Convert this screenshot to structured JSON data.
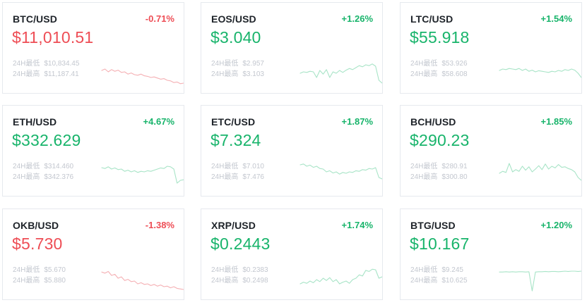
{
  "colors": {
    "up": "#18b46b",
    "down": "#ee4d55",
    "spark_up": "#a8e4c7",
    "spark_down": "#f5b0b4"
  },
  "labels": {
    "low": "24H最低",
    "high": "24H最高"
  },
  "tickers": [
    {
      "pair": "BTC/USD",
      "change": "-0.71%",
      "price": "$11,010.51",
      "low": "$10,834.45",
      "high": "$11,187.41",
      "trend": "down",
      "spark": [
        0.55,
        0.6,
        0.5,
        0.58,
        0.52,
        0.56,
        0.48,
        0.5,
        0.42,
        0.46,
        0.4,
        0.38,
        0.42,
        0.36,
        0.34,
        0.3,
        0.32,
        0.28,
        0.24,
        0.26,
        0.2,
        0.18,
        0.12,
        0.14,
        0.08,
        0.1
      ]
    },
    {
      "pair": "EOS/USD",
      "change": "+1.26%",
      "price": "$3.040",
      "low": "$2.957",
      "high": "$3.103",
      "trend": "up",
      "spark": [
        0.45,
        0.5,
        0.48,
        0.52,
        0.5,
        0.3,
        0.55,
        0.42,
        0.58,
        0.3,
        0.5,
        0.45,
        0.55,
        0.48,
        0.56,
        0.62,
        0.58,
        0.65,
        0.72,
        0.68,
        0.75,
        0.72,
        0.78,
        0.7,
        0.2,
        0.1
      ]
    },
    {
      "pair": "LTC/USD",
      "change": "+1.54%",
      "price": "$55.918",
      "low": "$53.926",
      "high": "$58.608",
      "trend": "up",
      "spark": [
        0.55,
        0.6,
        0.58,
        0.62,
        0.6,
        0.58,
        0.62,
        0.55,
        0.6,
        0.52,
        0.56,
        0.5,
        0.54,
        0.52,
        0.5,
        0.48,
        0.52,
        0.5,
        0.55,
        0.52,
        0.58,
        0.55,
        0.6,
        0.56,
        0.45,
        0.3
      ]
    },
    {
      "pair": "ETH/USD",
      "change": "+4.67%",
      "price": "$332.629",
      "low": "$314.460",
      "high": "$342.376",
      "trend": "up",
      "spark": [
        0.75,
        0.72,
        0.78,
        0.7,
        0.74,
        0.68,
        0.7,
        0.62,
        0.66,
        0.6,
        0.64,
        0.58,
        0.62,
        0.6,
        0.64,
        0.62,
        0.66,
        0.7,
        0.74,
        0.72,
        0.8,
        0.78,
        0.7,
        0.2,
        0.3,
        0.32
      ]
    },
    {
      "pair": "ETC/USD",
      "change": "+1.87%",
      "price": "$7.324",
      "low": "$7.010",
      "high": "$7.476",
      "trend": "up",
      "spark": [
        0.85,
        0.88,
        0.8,
        0.84,
        0.76,
        0.8,
        0.72,
        0.7,
        0.6,
        0.64,
        0.56,
        0.6,
        0.52,
        0.58,
        0.55,
        0.6,
        0.58,
        0.64,
        0.62,
        0.68,
        0.66,
        0.72,
        0.7,
        0.75,
        0.4,
        0.35
      ]
    },
    {
      "pair": "BCH/USD",
      "change": "+1.85%",
      "price": "$290.23",
      "low": "$280.91",
      "high": "$300.80",
      "trend": "up",
      "spark": [
        0.55,
        0.62,
        0.58,
        0.9,
        0.6,
        0.68,
        0.62,
        0.8,
        0.66,
        0.78,
        0.6,
        0.7,
        0.82,
        0.68,
        0.88,
        0.7,
        0.8,
        0.74,
        0.86,
        0.76,
        0.78,
        0.72,
        0.68,
        0.6,
        0.4,
        0.3
      ]
    },
    {
      "pair": "OKB/USD",
      "change": "-1.38%",
      "price": "$5.730",
      "low": "$5.670",
      "high": "$5.880",
      "trend": "down",
      "spark": [
        0.72,
        0.68,
        0.74,
        0.6,
        0.64,
        0.5,
        0.55,
        0.42,
        0.46,
        0.38,
        0.4,
        0.3,
        0.34,
        0.28,
        0.3,
        0.24,
        0.28,
        0.22,
        0.26,
        0.2,
        0.22,
        0.16,
        0.2,
        0.14,
        0.12,
        0.1
      ]
    },
    {
      "pair": "XRP/USD",
      "change": "+1.74%",
      "price": "$0.2443",
      "low": "$0.2383",
      "high": "$0.2498",
      "trend": "up",
      "spark": [
        0.3,
        0.36,
        0.32,
        0.4,
        0.34,
        0.45,
        0.38,
        0.5,
        0.42,
        0.52,
        0.38,
        0.45,
        0.3,
        0.36,
        0.4,
        0.32,
        0.45,
        0.5,
        0.62,
        0.58,
        0.78,
        0.74,
        0.82,
        0.8,
        0.5,
        0.55
      ]
    },
    {
      "pair": "BTG/USD",
      "change": "+1.20%",
      "price": "$10.167",
      "low": "$9.245",
      "high": "$10.625",
      "trend": "up",
      "spark": [
        0.72,
        0.72,
        0.73,
        0.72,
        0.73,
        0.72,
        0.73,
        0.73,
        0.72,
        0.73,
        0.05,
        0.72,
        0.73,
        0.73,
        0.74,
        0.73,
        0.74,
        0.74,
        0.73,
        0.74,
        0.75,
        0.74,
        0.75,
        0.75,
        0.74,
        0.75
      ]
    }
  ]
}
